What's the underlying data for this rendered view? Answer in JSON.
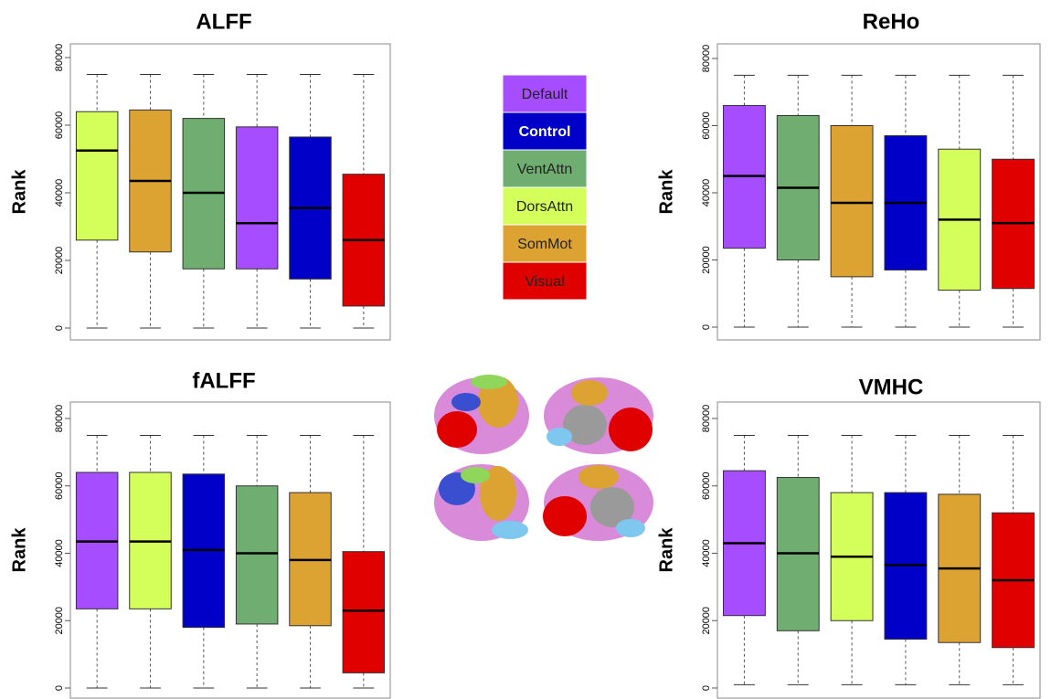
{
  "legend": [
    {
      "name": "Default",
      "color": "#a64dff"
    },
    {
      "name": "Control",
      "color": "#0000c8"
    },
    {
      "name": "VentAttn",
      "color": "#6fae70"
    },
    {
      "name": "DorsAttn",
      "color": "#d4ff5a"
    },
    {
      "name": "SomMot",
      "color": "#dca232"
    },
    {
      "name": "Visual",
      "color": "#e00000"
    }
  ],
  "chart_data": [
    {
      "type": "box",
      "title": "ALFF",
      "y_label": "Rank",
      "ylim": [
        0,
        80000
      ],
      "yticks": [
        0,
        20000,
        40000,
        60000,
        80000
      ],
      "boxes": [
        {
          "color": "#d4ff5a",
          "min": 0,
          "q1": 26000,
          "median": 52500,
          "q3": 64000,
          "max": 75000
        },
        {
          "color": "#dca232",
          "min": 0,
          "q1": 22500,
          "median": 43500,
          "q3": 64500,
          "max": 75000
        },
        {
          "color": "#6fae70",
          "min": 0,
          "q1": 17500,
          "median": 40000,
          "q3": 62000,
          "max": 75000
        },
        {
          "color": "#a64dff",
          "min": 0,
          "q1": 17500,
          "median": 31000,
          "q3": 59500,
          "max": 75000
        },
        {
          "color": "#0000c8",
          "min": 0,
          "q1": 14500,
          "median": 35500,
          "q3": 56500,
          "max": 75000
        },
        {
          "color": "#e00000",
          "min": 0,
          "q1": 6500,
          "median": 26000,
          "q3": 45500,
          "max": 75000
        }
      ]
    },
    {
      "type": "box",
      "title": "ReHo",
      "y_label": "Rank",
      "ylim": [
        0,
        80000
      ],
      "yticks": [
        0,
        20000,
        40000,
        60000,
        80000
      ],
      "boxes": [
        {
          "color": "#a64dff",
          "min": 0,
          "q1": 23500,
          "median": 45000,
          "q3": 66000,
          "max": 75000
        },
        {
          "color": "#6fae70",
          "min": 0,
          "q1": 20000,
          "median": 41500,
          "q3": 63000,
          "max": 75000
        },
        {
          "color": "#dca232",
          "min": 0,
          "q1": 15000,
          "median": 37000,
          "q3": 60000,
          "max": 75000
        },
        {
          "color": "#0000c8",
          "min": 0,
          "q1": 17000,
          "median": 37000,
          "q3": 57000,
          "max": 75000
        },
        {
          "color": "#d4ff5a",
          "min": 0,
          "q1": 11000,
          "median": 32000,
          "q3": 53000,
          "max": 75000
        },
        {
          "color": "#e00000",
          "min": 0,
          "q1": 11500,
          "median": 31000,
          "q3": 50000,
          "max": 75000
        }
      ]
    },
    {
      "type": "box",
      "title": "fALFF",
      "y_label": "Rank",
      "ylim": [
        0,
        80000
      ],
      "yticks": [
        0,
        20000,
        40000,
        60000,
        80000
      ],
      "boxes": [
        {
          "color": "#a64dff",
          "min": 0,
          "q1": 23500,
          "median": 43500,
          "q3": 64000,
          "max": 75000
        },
        {
          "color": "#d4ff5a",
          "min": 0,
          "q1": 23500,
          "median": 43500,
          "q3": 64000,
          "max": 75000
        },
        {
          "color": "#0000c8",
          "min": 0,
          "q1": 18000,
          "median": 41000,
          "q3": 63500,
          "max": 75000
        },
        {
          "color": "#6fae70",
          "min": 0,
          "q1": 19000,
          "median": 40000,
          "q3": 60000,
          "max": 75000
        },
        {
          "color": "#dca232",
          "min": 0,
          "q1": 18500,
          "median": 38000,
          "q3": 58000,
          "max": 75000
        },
        {
          "color": "#e00000",
          "min": 0,
          "q1": 4500,
          "median": 23000,
          "q3": 40500,
          "max": 75000
        }
      ]
    },
    {
      "type": "box",
      "title": "VMHC",
      "y_label": "Rank",
      "ylim": [
        0,
        80000
      ],
      "yticks": [
        0,
        20000,
        40000,
        60000,
        80000
      ],
      "boxes": [
        {
          "color": "#a64dff",
          "min": 1000,
          "q1": 21500,
          "median": 43000,
          "q3": 64500,
          "max": 75000
        },
        {
          "color": "#6fae70",
          "min": 1000,
          "q1": 17000,
          "median": 40000,
          "q3": 62500,
          "max": 75000
        },
        {
          "color": "#d4ff5a",
          "min": 1000,
          "q1": 20000,
          "median": 39000,
          "q3": 58000,
          "max": 75000
        },
        {
          "color": "#0000c8",
          "min": 1000,
          "q1": 14500,
          "median": 36500,
          "q3": 58000,
          "max": 75000
        },
        {
          "color": "#dca232",
          "min": 1000,
          "q1": 13500,
          "median": 35500,
          "q3": 57500,
          "max": 75000
        },
        {
          "color": "#e00000",
          "min": 1000,
          "q1": 12000,
          "median": 32000,
          "q3": 52000,
          "max": 75000
        }
      ]
    }
  ]
}
